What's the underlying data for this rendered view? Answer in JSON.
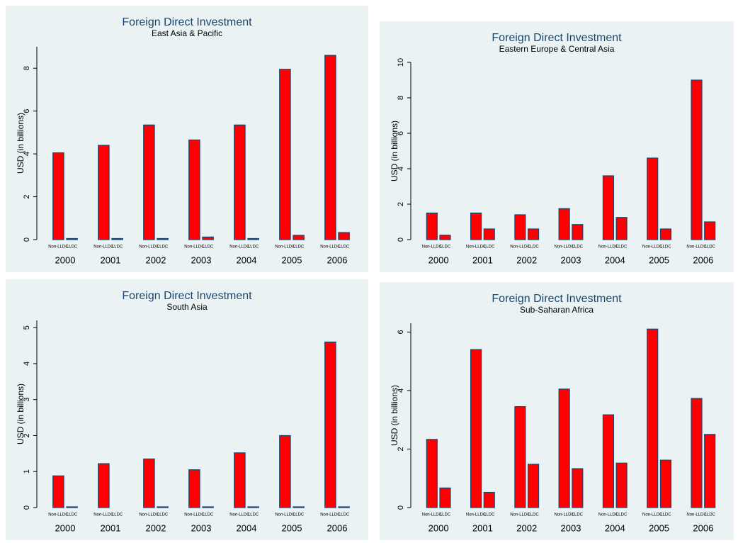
{
  "chart_data": [
    {
      "type": "bar",
      "title": "Foreign Direct Investment",
      "subtitle": "East Asia & Pacific",
      "y_label": "USD (in billions)",
      "categories": [
        "2000",
        "2001",
        "2002",
        "2003",
        "2004",
        "2005",
        "2006"
      ],
      "series": [
        {
          "name": "Non-LLDC",
          "color": "#ff0000",
          "values": [
            4.05,
            4.4,
            5.35,
            4.65,
            5.35,
            7.95,
            8.6
          ]
        },
        {
          "name": "LLDC",
          "color": "#ff0000",
          "values": [
            0.05,
            0.05,
            0.05,
            0.12,
            0.05,
            0.2,
            0.33
          ]
        }
      ],
      "ylim": [
        0,
        9
      ],
      "yticks": [
        0,
        2,
        4,
        6,
        8
      ]
    },
    {
      "type": "bar",
      "title": "Foreign Direct Investment",
      "subtitle": "Eastern Europe & Central Asia",
      "y_label": "USD (in billions)",
      "categories": [
        "2000",
        "2001",
        "2002",
        "2003",
        "2004",
        "2005",
        "2006"
      ],
      "series": [
        {
          "name": "Non-LLDC",
          "color": "#ff0000",
          "values": [
            1.5,
            1.5,
            1.4,
            1.75,
            3.6,
            4.6,
            9.0
          ]
        },
        {
          "name": "LLDC",
          "color": "#ff0000",
          "values": [
            0.25,
            0.6,
            0.6,
            0.85,
            1.25,
            0.6,
            1.0
          ]
        }
      ],
      "ylim": [
        0,
        10
      ],
      "yticks": [
        0,
        2,
        4,
        6,
        8,
        10
      ]
    },
    {
      "type": "bar",
      "title": "Foreign Direct Investment",
      "subtitle": "South Asia",
      "y_label": "USD (in billions)",
      "categories": [
        "2000",
        "2001",
        "2002",
        "2003",
        "2004",
        "2005",
        "2006"
      ],
      "series": [
        {
          "name": "Non-LLDC",
          "color": "#ff0000",
          "values": [
            0.88,
            1.22,
            1.35,
            1.05,
            1.52,
            2.0,
            4.6
          ]
        },
        {
          "name": "LLDC",
          "color": "#ff0000",
          "values": [
            0.02,
            0,
            0.02,
            0.02,
            0.02,
            0.02,
            0.02
          ]
        }
      ],
      "ylim": [
        0,
        5.2
      ],
      "yticks": [
        0,
        1,
        2,
        3,
        4,
        5
      ]
    },
    {
      "type": "bar",
      "title": "Foreign Direct Investment",
      "subtitle": "Sub-Saharan Africa",
      "y_label": "USD (in billions)",
      "categories": [
        "2000",
        "2001",
        "2002",
        "2003",
        "2004",
        "2005",
        "2006"
      ],
      "series": [
        {
          "name": "Non-LLDC",
          "color": "#ff0000",
          "values": [
            2.33,
            5.4,
            3.45,
            4.05,
            3.17,
            6.1,
            3.73
          ]
        },
        {
          "name": "LLDC",
          "color": "#ff0000",
          "values": [
            0.67,
            0.52,
            1.48,
            1.33,
            1.52,
            1.62,
            2.5
          ]
        }
      ],
      "ylim": [
        0,
        6.3
      ],
      "yticks": [
        0,
        2,
        4,
        6
      ]
    }
  ]
}
